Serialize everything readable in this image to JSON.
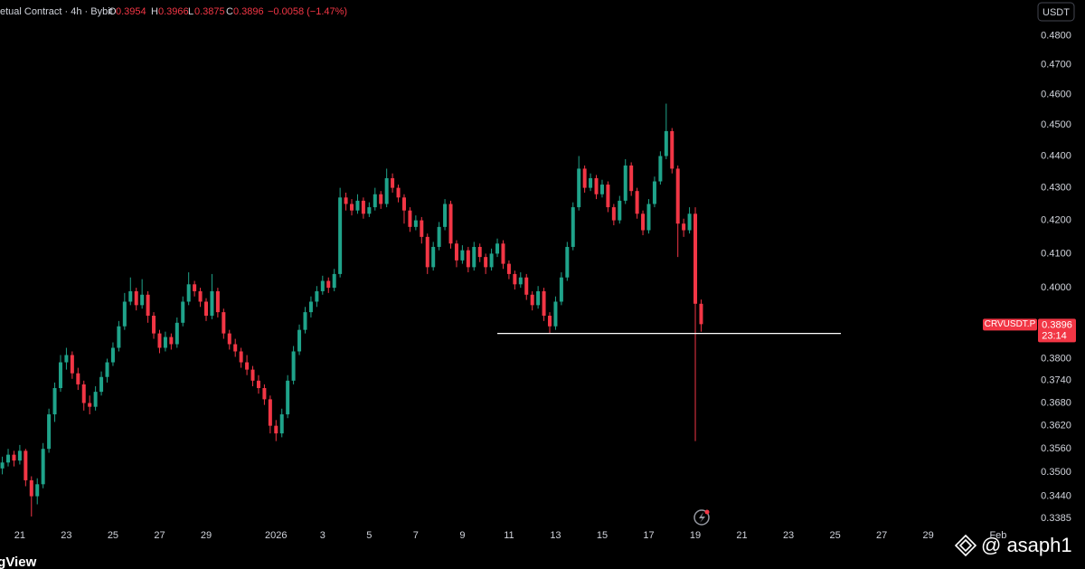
{
  "header": {
    "source": "etual Contract · 4h · Bybit",
    "ohlc_labels": [
      "O",
      "H",
      "L",
      "C"
    ],
    "change": "−0.0058 (−1.47%)",
    "currency": "USDT"
  },
  "price_label": {
    "symbol": "CRVUSDT.P",
    "countdown": "23:14"
  },
  "watermark": "@ asaph1",
  "branding": "ngView",
  "chart_data": {
    "type": "candlestick",
    "log_scale": true,
    "grid": false,
    "up_color": "#1fa38a",
    "down_color": "#f23645",
    "xlim": [
      -0.85,
      43.4
    ],
    "ylim": [
      0.337,
      0.483
    ],
    "xticks": [
      {
        "value": 0,
        "label": "21"
      },
      {
        "value": 2,
        "label": "23"
      },
      {
        "value": 4,
        "label": "25"
      },
      {
        "value": 6,
        "label": "27"
      },
      {
        "value": 8,
        "label": "29"
      },
      {
        "value": 11,
        "label": "2026"
      },
      {
        "value": 13,
        "label": "3"
      },
      {
        "value": 15,
        "label": "5"
      },
      {
        "value": 17,
        "label": "7"
      },
      {
        "value": 19,
        "label": "9"
      },
      {
        "value": 21,
        "label": "11"
      },
      {
        "value": 23,
        "label": "13"
      },
      {
        "value": 25,
        "label": "15"
      },
      {
        "value": 27,
        "label": "17"
      },
      {
        "value": 29,
        "label": "19"
      },
      {
        "value": 31,
        "label": "21"
      },
      {
        "value": 33,
        "label": "23"
      },
      {
        "value": 35,
        "label": "25"
      },
      {
        "value": 37,
        "label": "27"
      },
      {
        "value": 39,
        "label": "29"
      },
      {
        "value": 42,
        "label": "Feb"
      }
    ],
    "yticks": [
      {
        "value": 0.48,
        "label": "0.4800"
      },
      {
        "value": 0.47,
        "label": "0.4700"
      },
      {
        "value": 0.46,
        "label": "0.4600"
      },
      {
        "value": 0.45,
        "label": "0.4500"
      },
      {
        "value": 0.44,
        "label": "0.4400"
      },
      {
        "value": 0.43,
        "label": "0.4300"
      },
      {
        "value": 0.42,
        "label": "0.4200"
      },
      {
        "value": 0.41,
        "label": "0.4100"
      },
      {
        "value": 0.4,
        "label": "0.4000"
      },
      {
        "value": 0.38,
        "label": "0.3800"
      },
      {
        "value": 0.374,
        "label": "0.3740"
      },
      {
        "value": 0.368,
        "label": "0.3680"
      },
      {
        "value": 0.362,
        "label": "0.3620"
      },
      {
        "value": 0.356,
        "label": "0.3560"
      },
      {
        "value": 0.35,
        "label": "0.3500"
      },
      {
        "value": 0.344,
        "label": "0.3440"
      },
      {
        "value": 0.3385,
        "label": "0.3385"
      }
    ],
    "hline": {
      "value": 0.387,
      "x": [
        20.5,
        35.25
      ],
      "color": "#ffffff"
    },
    "x": [
      -0.75,
      -0.5,
      -0.25,
      0,
      0.25,
      0.5,
      0.75,
      1,
      1.25,
      1.5,
      1.75,
      2,
      2.25,
      2.5,
      2.75,
      3,
      3.25,
      3.5,
      3.75,
      4,
      4.25,
      4.5,
      4.75,
      5,
      5.25,
      5.5,
      5.75,
      6,
      6.25,
      6.5,
      6.75,
      7,
      7.25,
      7.5,
      7.75,
      8,
      8.25,
      8.5,
      8.75,
      9,
      9.25,
      9.5,
      9.75,
      10,
      10.25,
      10.5,
      10.75,
      11,
      11.25,
      11.5,
      11.75,
      12,
      12.25,
      12.5,
      12.75,
      13,
      13.25,
      13.5,
      13.75,
      14,
      14.25,
      14.5,
      14.75,
      15,
      15.25,
      15.5,
      15.75,
      16,
      16.25,
      16.5,
      16.75,
      17,
      17.25,
      17.5,
      17.75,
      18,
      18.25,
      18.5,
      18.75,
      19,
      19.25,
      19.5,
      19.75,
      20,
      20.25,
      20.5,
      20.75,
      21,
      21.25,
      21.5,
      21.75,
      22,
      22.25,
      22.5,
      22.75,
      23,
      23.25,
      23.5,
      23.75,
      24,
      24.25,
      24.5,
      24.75,
      25,
      25.25,
      25.5,
      25.75,
      26,
      26.25,
      26.5,
      26.75,
      27,
      27.25,
      27.5,
      27.75,
      28,
      28.25,
      28.5,
      28.75,
      29,
      29.25
    ],
    "open": [
      0.351,
      0.3525,
      0.3545,
      0.353,
      0.3555,
      0.348,
      0.344,
      0.347,
      0.356,
      0.365,
      0.372,
      0.379,
      0.381,
      0.376,
      0.373,
      0.368,
      0.367,
      0.371,
      0.375,
      0.379,
      0.383,
      0.389,
      0.396,
      0.399,
      0.395,
      0.398,
      0.392,
      0.387,
      0.383,
      0.386,
      0.384,
      0.39,
      0.396,
      0.401,
      0.399,
      0.396,
      0.392,
      0.399,
      0.393,
      0.387,
      0.384,
      0.382,
      0.379,
      0.377,
      0.374,
      0.372,
      0.369,
      0.362,
      0.36,
      0.365,
      0.374,
      0.382,
      0.388,
      0.393,
      0.396,
      0.399,
      0.402,
      0.4,
      0.404,
      0.427,
      0.425,
      0.423,
      0.426,
      0.422,
      0.424,
      0.428,
      0.425,
      0.433,
      0.43,
      0.427,
      0.423,
      0.418,
      0.42,
      0.415,
      0.406,
      0.412,
      0.418,
      0.425,
      0.413,
      0.408,
      0.411,
      0.406,
      0.412,
      0.409,
      0.406,
      0.41,
      0.413,
      0.407,
      0.404,
      0.401,
      0.403,
      0.398,
      0.395,
      0.399,
      0.392,
      0.389,
      0.396,
      0.403,
      0.412,
      0.424,
      0.436,
      0.43,
      0.433,
      0.428,
      0.431,
      0.424,
      0.42,
      0.426,
      0.437,
      0.429,
      0.422,
      0.417,
      0.425,
      0.432,
      0.44,
      0.448,
      0.436,
      0.419,
      0.417,
      0.422,
      0.3954
    ],
    "high": [
      0.354,
      0.356,
      0.3555,
      0.357,
      0.356,
      0.349,
      0.3485,
      0.3575,
      0.3665,
      0.3735,
      0.381,
      0.383,
      0.382,
      0.3775,
      0.374,
      0.37,
      0.3725,
      0.3765,
      0.38,
      0.3845,
      0.3905,
      0.3985,
      0.403,
      0.4,
      0.4025,
      0.399,
      0.393,
      0.388,
      0.3875,
      0.387,
      0.3915,
      0.3975,
      0.4045,
      0.402,
      0.4,
      0.397,
      0.404,
      0.4,
      0.394,
      0.388,
      0.3855,
      0.383,
      0.381,
      0.378,
      0.3755,
      0.373,
      0.37,
      0.3635,
      0.3665,
      0.3755,
      0.3835,
      0.3895,
      0.3945,
      0.3975,
      0.4005,
      0.4035,
      0.403,
      0.4055,
      0.43,
      0.4285,
      0.4265,
      0.428,
      0.427,
      0.4255,
      0.43,
      0.429,
      0.436,
      0.4345,
      0.431,
      0.428,
      0.424,
      0.4215,
      0.421,
      0.416,
      0.4135,
      0.4195,
      0.4265,
      0.426,
      0.414,
      0.4125,
      0.412,
      0.4135,
      0.413,
      0.41,
      0.4115,
      0.4145,
      0.414,
      0.408,
      0.405,
      0.4045,
      0.404,
      0.399,
      0.4005,
      0.4,
      0.393,
      0.3975,
      0.4045,
      0.4135,
      0.4255,
      0.44,
      0.437,
      0.4345,
      0.434,
      0.4325,
      0.432,
      0.425,
      0.4275,
      0.439,
      0.438,
      0.43,
      0.423,
      0.4265,
      0.4335,
      0.4415,
      0.457,
      0.449,
      0.437,
      0.4205,
      0.424,
      0.424,
      0.3966
    ],
    "low": [
      0.3495,
      0.3515,
      0.3515,
      0.352,
      0.3465,
      0.339,
      0.342,
      0.346,
      0.355,
      0.363,
      0.371,
      0.377,
      0.3745,
      0.3715,
      0.366,
      0.365,
      0.366,
      0.37,
      0.3735,
      0.378,
      0.382,
      0.388,
      0.395,
      0.3935,
      0.394,
      0.39,
      0.3855,
      0.3815,
      0.382,
      0.3825,
      0.383,
      0.389,
      0.395,
      0.3975,
      0.3945,
      0.3905,
      0.391,
      0.3915,
      0.3855,
      0.3825,
      0.3805,
      0.3775,
      0.3755,
      0.3725,
      0.3705,
      0.3675,
      0.36,
      0.358,
      0.359,
      0.364,
      0.373,
      0.381,
      0.387,
      0.3915,
      0.3945,
      0.398,
      0.3985,
      0.399,
      0.403,
      0.423,
      0.4215,
      0.422,
      0.4205,
      0.421,
      0.423,
      0.4235,
      0.424,
      0.4285,
      0.4255,
      0.419,
      0.4165,
      0.417,
      0.413,
      0.404,
      0.405,
      0.411,
      0.417,
      0.4115,
      0.406,
      0.407,
      0.4045,
      0.405,
      0.4075,
      0.404,
      0.405,
      0.409,
      0.4055,
      0.4025,
      0.3995,
      0.4,
      0.3965,
      0.3935,
      0.394,
      0.3905,
      0.387,
      0.388,
      0.395,
      0.402,
      0.411,
      0.423,
      0.4285,
      0.429,
      0.4265,
      0.427,
      0.4225,
      0.4185,
      0.419,
      0.425,
      0.4275,
      0.4205,
      0.4155,
      0.416,
      0.424,
      0.431,
      0.439,
      0.4345,
      0.409,
      0.415,
      0.416,
      0.358,
      0.3875
    ],
    "close": [
      0.3525,
      0.3545,
      0.353,
      0.3555,
      0.348,
      0.344,
      0.347,
      0.356,
      0.365,
      0.372,
      0.379,
      0.381,
      0.376,
      0.373,
      0.368,
      0.367,
      0.371,
      0.375,
      0.379,
      0.383,
      0.389,
      0.396,
      0.399,
      0.395,
      0.398,
      0.392,
      0.387,
      0.383,
      0.386,
      0.384,
      0.39,
      0.396,
      0.401,
      0.399,
      0.396,
      0.392,
      0.399,
      0.393,
      0.387,
      0.384,
      0.382,
      0.379,
      0.377,
      0.374,
      0.372,
      0.369,
      0.362,
      0.36,
      0.365,
      0.374,
      0.382,
      0.388,
      0.393,
      0.396,
      0.399,
      0.402,
      0.4,
      0.404,
      0.427,
      0.425,
      0.423,
      0.426,
      0.422,
      0.424,
      0.428,
      0.425,
      0.433,
      0.43,
      0.427,
      0.423,
      0.418,
      0.42,
      0.415,
      0.406,
      0.412,
      0.418,
      0.425,
      0.413,
      0.408,
      0.411,
      0.406,
      0.412,
      0.409,
      0.406,
      0.41,
      0.413,
      0.407,
      0.404,
      0.401,
      0.403,
      0.398,
      0.395,
      0.399,
      0.392,
      0.389,
      0.396,
      0.403,
      0.412,
      0.424,
      0.436,
      0.43,
      0.433,
      0.428,
      0.431,
      0.424,
      0.42,
      0.426,
      0.437,
      0.429,
      0.422,
      0.417,
      0.425,
      0.432,
      0.44,
      0.448,
      0.436,
      0.419,
      0.417,
      0.422,
      0.3954,
      0.3896
    ]
  }
}
